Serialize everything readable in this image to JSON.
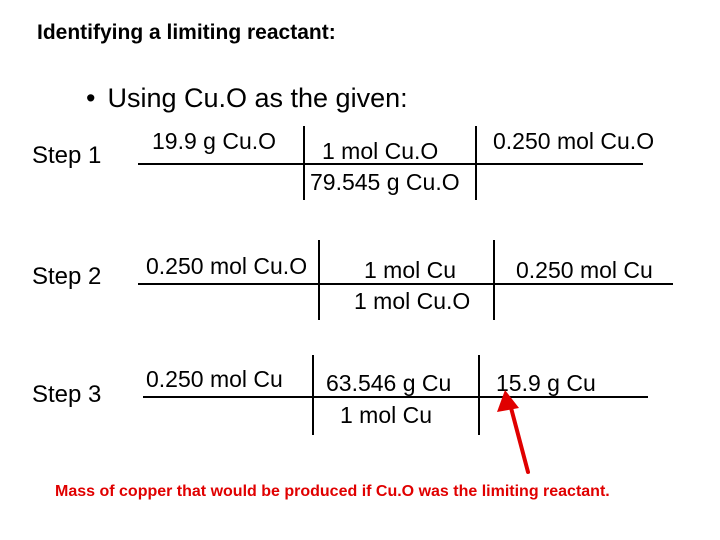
{
  "title": "Identifying a limiting reactant:",
  "bullet": {
    "marker": "•",
    "text": "Using Cu.O as the given:"
  },
  "steps": [
    {
      "label": "Step 1",
      "c1_top": "19.9 g Cu.O",
      "c2_top": "1 mol Cu.O",
      "c2_bottom": "79.545 g Cu.O",
      "c3_top": "0.250 mol Cu.O"
    },
    {
      "label": "Step 2",
      "c1_top": "0.250 mol Cu.O",
      "c2_top": "1 mol Cu",
      "c2_bottom": "1 mol Cu.O",
      "c3_top": "0.250 mol Cu"
    },
    {
      "label": "Step 3",
      "c1_top": "0.250 mol Cu",
      "c2_top": "63.546 g Cu",
      "c2_bottom": "1 mol Cu",
      "c3_top": "15.9 g Cu"
    }
  ],
  "note": "Mass of copper that would be produced if Cu.O was the limiting reactant.",
  "colors": {
    "note": "#e00000",
    "arrow": "#e00000"
  }
}
